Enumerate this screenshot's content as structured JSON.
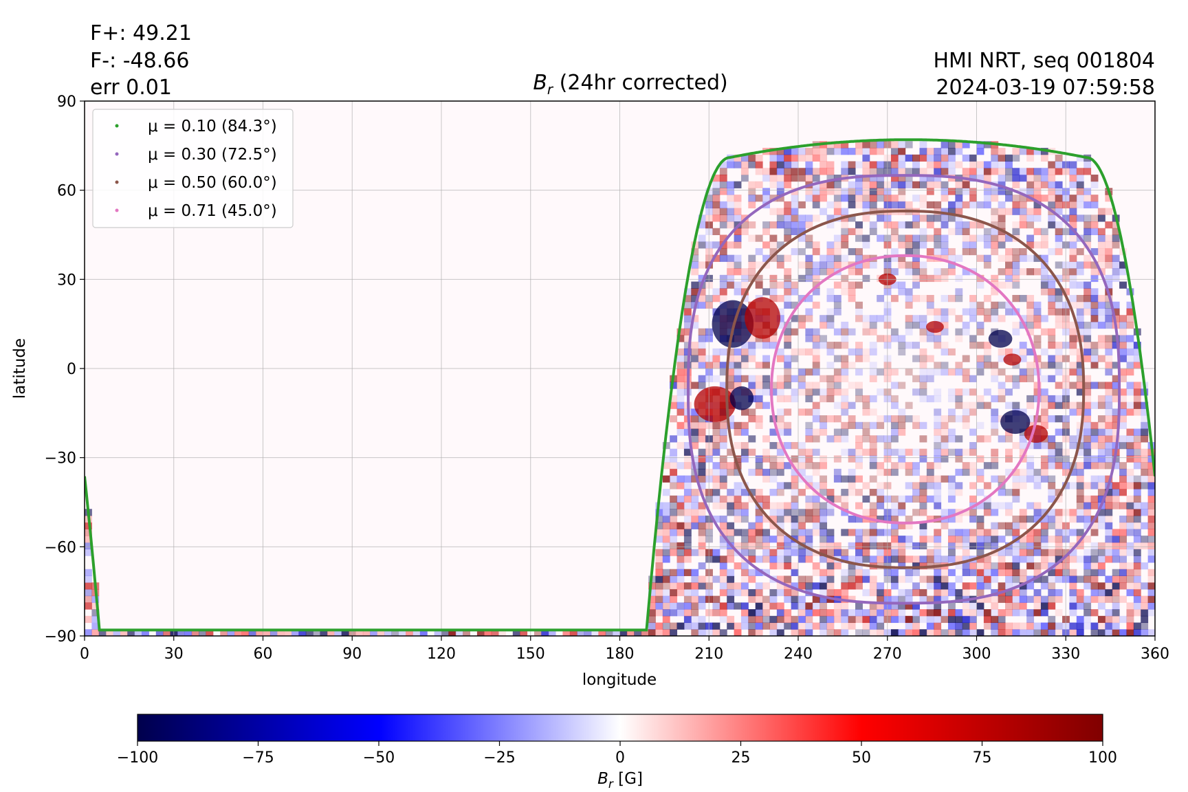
{
  "chart_data": {
    "type": "heatmap",
    "title": "B_r (24hr corrected)",
    "title_parts": {
      "symbol": "B",
      "subscript": "r",
      "rest": " (24hr corrected)"
    },
    "annotations_left": [
      "F+: 49.21",
      "F-: -48.66",
      "err 0.01"
    ],
    "annotations_right": [
      "HMI NRT, seq 001804",
      "2024-03-19 07:59:58"
    ],
    "xlabel": "longitude",
    "ylabel": "latitude",
    "xlim": [
      0,
      360
    ],
    "ylim": [
      -90,
      90
    ],
    "x_ticks": [
      "0",
      "30",
      "60",
      "90",
      "120",
      "150",
      "180",
      "210",
      "240",
      "270",
      "300",
      "330",
      "360"
    ],
    "y_ticks": [
      "90",
      "60",
      "30",
      "0",
      "−30",
      "−60",
      "−90"
    ],
    "grid": true,
    "legend_placement": "upper-left",
    "series": [
      {
        "name": "μ = 0.10 (84.3°)",
        "mu": 0.1,
        "color": "#2ca02c",
        "contour_lat_range": [
          -88,
          77
        ]
      },
      {
        "name": "μ = 0.30 (72.5°)",
        "mu": 0.3,
        "color": "#9467bd",
        "contour_lat_range": [
          -79,
          65
        ],
        "contour_lon_range": [
          203,
          348
        ]
      },
      {
        "name": "μ = 0.50 (60.0°)",
        "mu": 0.5,
        "color": "#8c564b",
        "contour_lat_range": [
          -67,
          53
        ],
        "contour_lon_range": [
          216,
          336
        ]
      },
      {
        "name": "μ = 0.71 (45.0°)",
        "mu": 0.71,
        "color": "#e377c2",
        "contour_lat_range": [
          -52,
          38
        ],
        "contour_lon_range": [
          231,
          321
        ]
      }
    ],
    "colorbar": {
      "label": "B_r [G]",
      "label_parts": {
        "symbol": "B",
        "subscript": "r",
        "rest": " [G]"
      },
      "range": [
        -100,
        100
      ],
      "ticks": [
        "−100",
        "−75",
        "−50",
        "−25",
        "0",
        "25",
        "50",
        "75",
        "100"
      ],
      "colormap": "seismic",
      "colors": [
        "#00004c",
        "#0000ff",
        "#ffffff",
        "#ff0000",
        "#800000"
      ]
    },
    "disk_center_longitude": 277
  }
}
